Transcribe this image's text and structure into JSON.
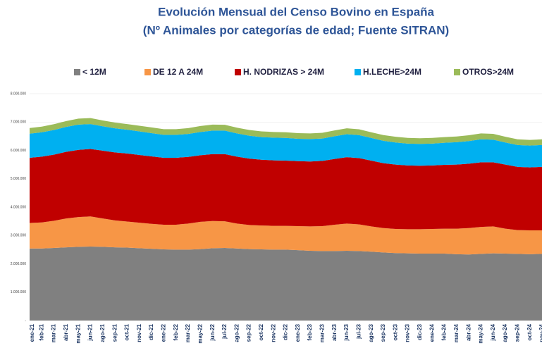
{
  "chart_data": {
    "type": "stacked-area",
    "title": "Evolución Mensual del Censo Bovino en España",
    "subtitle": "(Nº Animales por categorías de edad; Fuente SITRAN)",
    "categories": [
      "ene-21",
      "feb-21",
      "mar-21",
      "abr-21",
      "may-21",
      "jun-21",
      "ago-21",
      "sep-21",
      "oct-21",
      "nov-21",
      "dic-21",
      "ene-22",
      "feb-22",
      "mar-22",
      "may-22",
      "jun-22",
      "jul-22",
      "ago-22",
      "sep-22",
      "oct-22",
      "nov-22",
      "dic-22",
      "ene-23",
      "feb-23",
      "mar-23",
      "abr-23",
      "jun-23",
      "jul-23",
      "ago-23",
      "sep-23",
      "oct-23",
      "nov-23",
      "dic-23",
      "ene-24",
      "feb-24",
      "mar-24",
      "abr-24",
      "may-24",
      "jun-24",
      "ago-24",
      "sep-24",
      "oct-24",
      "nov-24"
    ],
    "series": [
      {
        "name": "< 12M",
        "color": "#808080",
        "values": [
          2540000,
          2540000,
          2560000,
          2580000,
          2600000,
          2610000,
          2600000,
          2580000,
          2570000,
          2550000,
          2530000,
          2510000,
          2500000,
          2500000,
          2520000,
          2550000,
          2560000,
          2540000,
          2520000,
          2510000,
          2500000,
          2500000,
          2480000,
          2460000,
          2450000,
          2450000,
          2460000,
          2450000,
          2430000,
          2400000,
          2380000,
          2370000,
          2360000,
          2360000,
          2360000,
          2340000,
          2330000,
          2350000,
          2370000,
          2360000,
          2350000,
          2340000,
          2350000
        ]
      },
      {
        "name": "DE 12 A 24M",
        "color": "#f79646",
        "values": [
          900000,
          920000,
          960000,
          1020000,
          1050000,
          1060000,
          1000000,
          950000,
          920000,
          900000,
          880000,
          870000,
          880000,
          920000,
          960000,
          960000,
          940000,
          880000,
          850000,
          840000,
          840000,
          840000,
          850000,
          860000,
          880000,
          930000,
          960000,
          940000,
          890000,
          860000,
          850000,
          850000,
          860000,
          870000,
          880000,
          900000,
          930000,
          950000,
          950000,
          880000,
          840000,
          840000,
          830000
        ]
      },
      {
        "name": "H. NODRIZAS > 24M",
        "color": "#c00000",
        "values": [
          2300000,
          2320000,
          2330000,
          2350000,
          2370000,
          2380000,
          2390000,
          2400000,
          2400000,
          2390000,
          2380000,
          2360000,
          2360000,
          2350000,
          2350000,
          2360000,
          2370000,
          2360000,
          2340000,
          2320000,
          2310000,
          2300000,
          2290000,
          2290000,
          2300000,
          2320000,
          2340000,
          2340000,
          2320000,
          2290000,
          2270000,
          2250000,
          2240000,
          2240000,
          2250000,
          2260000,
          2270000,
          2280000,
          2260000,
          2260000,
          2230000,
          2220000,
          2240000
        ]
      },
      {
        "name": "H.LECHE>24M",
        "color": "#00b0f0",
        "values": [
          850000,
          860000,
          870000,
          880000,
          890000,
          880000,
          860000,
          850000,
          840000,
          830000,
          820000,
          810000,
          810000,
          810000,
          820000,
          830000,
          830000,
          820000,
          810000,
          800000,
          800000,
          800000,
          790000,
          790000,
          790000,
          800000,
          810000,
          810000,
          800000,
          790000,
          780000,
          770000,
          770000,
          770000,
          780000,
          790000,
          800000,
          810000,
          800000,
          780000,
          770000,
          770000,
          770000
        ]
      },
      {
        "name": "OTROS>24M",
        "color": "#9bbb59",
        "values": [
          200000,
          200000,
          205000,
          205000,
          210000,
          210000,
          205000,
          200000,
          200000,
          200000,
          200000,
          200000,
          200000,
          205000,
          210000,
          210000,
          205000,
          200000,
          200000,
          200000,
          200000,
          200000,
          200000,
          200000,
          200000,
          205000,
          210000,
          205000,
          200000,
          200000,
          200000,
          200000,
          200000,
          200000,
          200000,
          200000,
          205000,
          210000,
          205000,
          200000,
          200000,
          200000,
          200000
        ]
      }
    ],
    "ylim": [
      0,
      8000000
    ],
    "yticks": [
      {
        "value": 0,
        "label": "-"
      },
      {
        "value": 1000000,
        "label": "1.000.000"
      },
      {
        "value": 2000000,
        "label": "2.000.000"
      },
      {
        "value": 3000000,
        "label": "3.000.000"
      },
      {
        "value": 4000000,
        "label": "4.000.000"
      },
      {
        "value": 5000000,
        "label": "5.000.000"
      },
      {
        "value": 6000000,
        "label": "6.000.000"
      },
      {
        "value": 7000000,
        "label": "7.000.000"
      },
      {
        "value": 8000000,
        "label": "8.000.000"
      }
    ],
    "grid": true,
    "legend": "top"
  }
}
